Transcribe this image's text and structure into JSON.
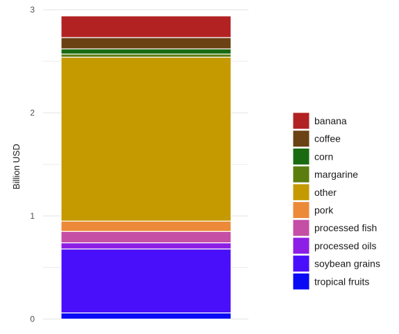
{
  "chart_data": {
    "type": "bar",
    "stacked": true,
    "categories": [
      ""
    ],
    "xlabel": "",
    "ylabel": "Billion USD",
    "ylim": [
      0,
      3
    ],
    "y_ticks": [
      0,
      1,
      2,
      3
    ],
    "grid": true,
    "legend_position": "right",
    "series": [
      {
        "name": "tropical fruits",
        "color": "#0a0af5",
        "values": [
          0.06
        ]
      },
      {
        "name": "soybean grains",
        "color": "#4a0ffa",
        "values": [
          0.62
        ]
      },
      {
        "name": "processed oils",
        "color": "#8c1ee6",
        "values": [
          0.06
        ]
      },
      {
        "name": "processed fish",
        "color": "#c44fa4",
        "values": [
          0.11
        ]
      },
      {
        "name": "pork",
        "color": "#ec8a3a",
        "values": [
          0.1
        ]
      },
      {
        "name": "other",
        "color": "#c59a00",
        "values": [
          1.59
        ]
      },
      {
        "name": "margarine",
        "color": "#5b7d0f",
        "values": [
          0.03
        ]
      },
      {
        "name": "corn",
        "color": "#1a6b10",
        "values": [
          0.05
        ]
      },
      {
        "name": "coffee",
        "color": "#6a4214",
        "values": [
          0.11
        ]
      },
      {
        "name": "banana",
        "color": "#b22222",
        "values": [
          0.21
        ]
      }
    ]
  }
}
